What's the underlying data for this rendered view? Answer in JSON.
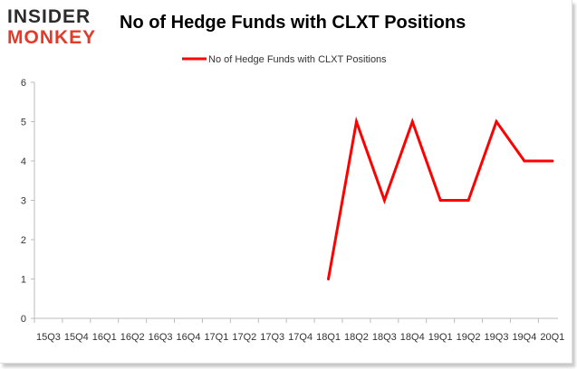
{
  "branding": {
    "logo_top": "INSIDER",
    "logo_bottom": "MONKEY"
  },
  "chart_data": {
    "type": "line",
    "title": "No of Hedge Funds with CLXT Positions",
    "xlabel": "",
    "ylabel": "",
    "categories": [
      "15Q3",
      "15Q4",
      "16Q1",
      "16Q2",
      "16Q3",
      "16Q4",
      "17Q1",
      "17Q2",
      "17Q3",
      "17Q4",
      "18Q1",
      "18Q2",
      "18Q3",
      "18Q4",
      "19Q1",
      "19Q2",
      "19Q3",
      "19Q4",
      "20Q1"
    ],
    "series": [
      {
        "name": "No of Hedge Funds with CLXT Positions",
        "color": "#ff0000",
        "values": [
          null,
          null,
          null,
          null,
          null,
          null,
          null,
          null,
          null,
          null,
          1,
          5,
          3,
          5,
          3,
          3,
          5,
          4,
          4
        ]
      }
    ],
    "ylim": [
      0,
      6
    ],
    "yticks": [
      0,
      1,
      2,
      3,
      4,
      5,
      6
    ],
    "grid": false,
    "legend": "top-center"
  }
}
